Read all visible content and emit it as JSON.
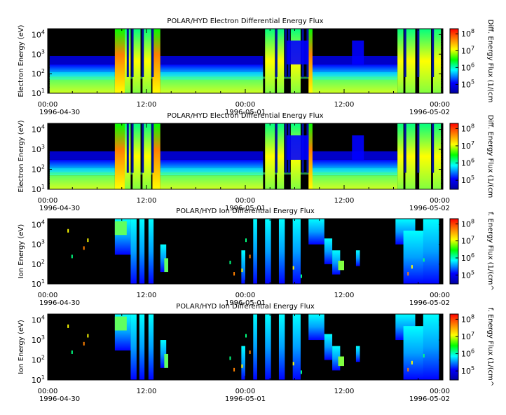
{
  "chart_data": [
    {
      "type": "heatmap",
      "title": "POLAR/HYD  Electron Differential Energy Flux",
      "ylabel": "Electron Energy (eV)",
      "colorbar_label": "Diff. Energy Flux (1/(cm",
      "y_scale": "log",
      "ylim": [
        10,
        20000
      ],
      "y_ticks": [
        {
          "value": 10,
          "base": "10",
          "exp": "1"
        },
        {
          "value": 100,
          "base": "10",
          "exp": "2"
        },
        {
          "value": 1000,
          "base": "10",
          "exp": "3"
        },
        {
          "value": 10000,
          "base": "10",
          "exp": "4"
        }
      ],
      "x_ticks": [
        {
          "time": "00:00",
          "date": "1996-04-30"
        },
        {
          "time": "12:00",
          "date": ""
        },
        {
          "time": "00:00",
          "date": "1996-05-01"
        },
        {
          "time": "12:00",
          "date": ""
        },
        {
          "time": "00:00",
          "date": "1996-05-02"
        }
      ],
      "colorbar_ticks": [
        {
          "value": 100000,
          "base": "10",
          "exp": "5"
        },
        {
          "value": 1000000,
          "base": "10",
          "exp": "6"
        },
        {
          "value": 10000000,
          "base": "10",
          "exp": "7"
        },
        {
          "value": 100000000,
          "base": "10",
          "exp": "8"
        }
      ],
      "colorbar_range": [
        30000,
        200000000
      ],
      "colormap": [
        "#0000a0",
        "#0000ff",
        "#00ffff",
        "#00ff00",
        "#ffff00",
        "#ff8000",
        "#ff0000"
      ]
    },
    {
      "type": "heatmap",
      "title": "POLAR/HYD  Electron Differential Energy Flux",
      "ylabel": "Electron Energy (eV)",
      "colorbar_label": "Diff. Energy Flux (1/(cm",
      "y_scale": "log",
      "ylim": [
        10,
        20000
      ],
      "y_ticks": [
        {
          "value": 10,
          "base": "10",
          "exp": "1"
        },
        {
          "value": 100,
          "base": "10",
          "exp": "2"
        },
        {
          "value": 1000,
          "base": "10",
          "exp": "3"
        },
        {
          "value": 10000,
          "base": "10",
          "exp": "4"
        }
      ],
      "x_ticks": [
        {
          "time": "00:00",
          "date": "1996-04-30"
        },
        {
          "time": "12:00",
          "date": ""
        },
        {
          "time": "00:00",
          "date": "1996-05-01"
        },
        {
          "time": "12:00",
          "date": ""
        },
        {
          "time": "00:00",
          "date": "1996-05-02"
        }
      ],
      "colorbar_ticks": [
        {
          "value": 100000,
          "base": "10",
          "exp": "5"
        },
        {
          "value": 1000000,
          "base": "10",
          "exp": "6"
        },
        {
          "value": 10000000,
          "base": "10",
          "exp": "7"
        },
        {
          "value": 100000000,
          "base": "10",
          "exp": "8"
        }
      ],
      "colorbar_range": [
        30000,
        200000000
      ],
      "colormap": [
        "#0000a0",
        "#0000ff",
        "#00ffff",
        "#00ff00",
        "#ffff00",
        "#ff8000",
        "#ff0000"
      ]
    },
    {
      "type": "heatmap",
      "title": "POLAR/HYD  Ion Differential Energy Flux",
      "ylabel": "Ion Energy (eV)",
      "colorbar_label": "f. Energy Flux (1/(cm^",
      "y_scale": "log",
      "ylim": [
        10,
        20000
      ],
      "y_ticks": [
        {
          "value": 10,
          "base": "10",
          "exp": "1"
        },
        {
          "value": 100,
          "base": "10",
          "exp": "2"
        },
        {
          "value": 1000,
          "base": "10",
          "exp": "3"
        },
        {
          "value": 10000,
          "base": "10",
          "exp": "4"
        }
      ],
      "x_ticks": [
        {
          "time": "00:00",
          "date": "1996-04-30"
        },
        {
          "time": "12:00",
          "date": ""
        },
        {
          "time": "00:00",
          "date": "1996-05-01"
        },
        {
          "time": "12:00",
          "date": ""
        },
        {
          "time": "00:00",
          "date": "1996-05-02"
        }
      ],
      "colorbar_ticks": [
        {
          "value": 100000,
          "base": "10",
          "exp": "5"
        },
        {
          "value": 1000000,
          "base": "10",
          "exp": "6"
        },
        {
          "value": 10000000,
          "base": "10",
          "exp": "7"
        },
        {
          "value": 100000000,
          "base": "10",
          "exp": "8"
        }
      ],
      "colorbar_range": [
        30000,
        200000000
      ],
      "colormap": [
        "#0000a0",
        "#0000ff",
        "#00ffff",
        "#00ff00",
        "#ffff00",
        "#ff8000",
        "#ff0000"
      ]
    },
    {
      "type": "heatmap",
      "title": "POLAR/HYD  Ion Differential Energy Flux",
      "ylabel": "Ion Energy (eV)",
      "colorbar_label": "f. Energy Flux (1/(cm^",
      "y_scale": "log",
      "ylim": [
        10,
        20000
      ],
      "y_ticks": [
        {
          "value": 10,
          "base": "10",
          "exp": "1"
        },
        {
          "value": 100,
          "base": "10",
          "exp": "2"
        },
        {
          "value": 1000,
          "base": "10",
          "exp": "3"
        },
        {
          "value": 10000,
          "base": "10",
          "exp": "4"
        }
      ],
      "x_ticks": [
        {
          "time": "00:00",
          "date": "1996-04-30"
        },
        {
          "time": "12:00",
          "date": ""
        },
        {
          "time": "00:00",
          "date": "1996-05-01"
        },
        {
          "time": "12:00",
          "date": ""
        },
        {
          "time": "00:00",
          "date": "1996-05-02"
        }
      ],
      "colorbar_ticks": [
        {
          "value": 100000,
          "base": "10",
          "exp": "5"
        },
        {
          "value": 1000000,
          "base": "10",
          "exp": "6"
        },
        {
          "value": 10000000,
          "base": "10",
          "exp": "7"
        },
        {
          "value": 100000000,
          "base": "10",
          "exp": "8"
        }
      ],
      "colorbar_range": [
        30000,
        200000000
      ],
      "colormap": [
        "#0000a0",
        "#0000ff",
        "#00ffff",
        "#00ff00",
        "#ffff00",
        "#ff8000",
        "#ff0000"
      ]
    }
  ]
}
